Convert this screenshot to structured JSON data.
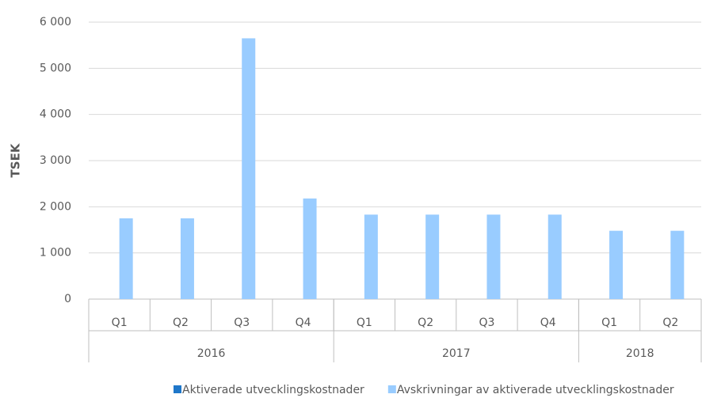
{
  "chart_data": {
    "type": "bar",
    "y_label": "TSEK",
    "categories": [
      "Q1",
      "Q2",
      "Q3",
      "Q4",
      "Q1",
      "Q2",
      "Q3",
      "Q4",
      "Q1",
      "Q2"
    ],
    "category_groups": [
      {
        "label": "2016",
        "span": 4
      },
      {
        "label": "2017",
        "span": 4
      },
      {
        "label": "2018",
        "span": 2
      }
    ],
    "series": [
      {
        "name": "Aktiverade utvecklingskostnader",
        "color": "#1f77c9",
        "values": [
          0,
          0,
          0,
          0,
          0,
          0,
          0,
          0,
          0,
          0
        ]
      },
      {
        "name": "Avskrivningar av aktiverade utvecklingskostnader",
        "color": "#99ccff",
        "values": [
          1750,
          1750,
          5650,
          2180,
          1830,
          1830,
          1830,
          1830,
          1480,
          1480
        ]
      }
    ],
    "ylim": [
      0,
      6000
    ],
    "yticks": [
      0,
      {
        "value": 1000,
        "label": "1 000"
      },
      {
        "value": 2000,
        "label": "2 000"
      },
      {
        "value": 3000,
        "label": "3 000"
      },
      {
        "value": 4000,
        "label": "4 000"
      },
      {
        "value": 5000,
        "label": "5 000"
      },
      {
        "value": 6000,
        "label": "6 000"
      }
    ],
    "grid": true,
    "legend": "bottom"
  }
}
